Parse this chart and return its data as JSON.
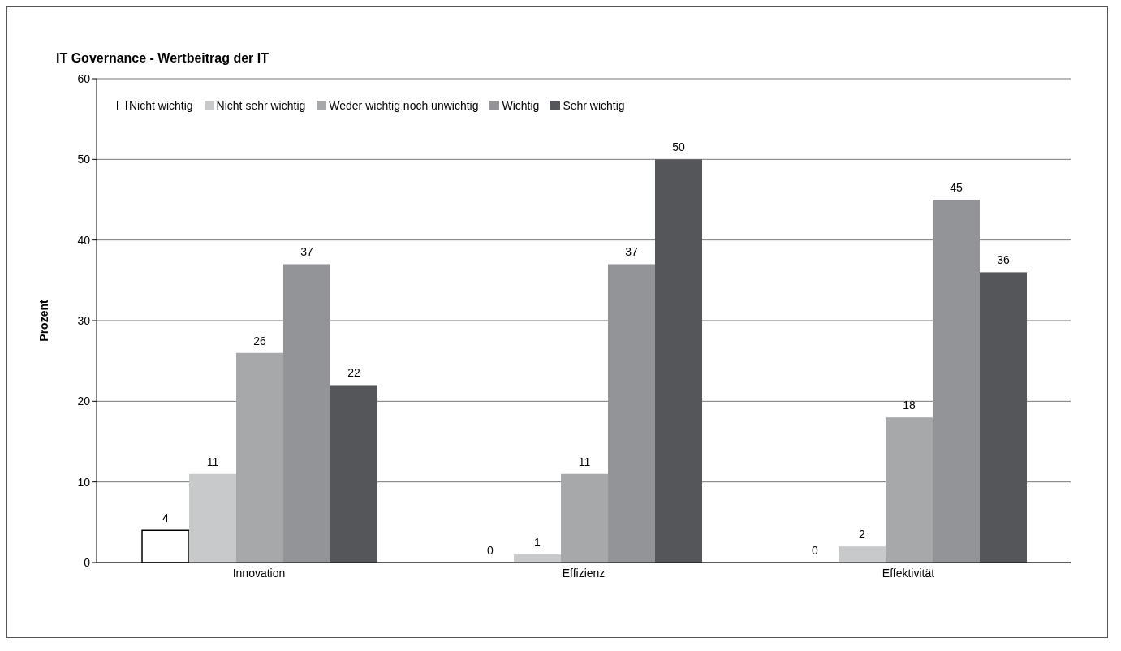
{
  "chart_data": {
    "type": "bar",
    "title": "IT Governance - Wertbeitrag der IT",
    "ylabel": "Prozent",
    "categories": [
      "Innovation",
      "Effizienz",
      "Effektivität"
    ],
    "series": [
      {
        "name": "Nicht wichtig",
        "color": "#ffffff",
        "values": [
          4,
          0,
          0
        ]
      },
      {
        "name": "Nicht sehr wichtig",
        "color": "#c8c9cb",
        "values": [
          11,
          1,
          2
        ]
      },
      {
        "name": "Weder wichtig noch unwichtig",
        "color": "#a7a8aa",
        "values": [
          26,
          11,
          18
        ]
      },
      {
        "name": "Wichtig",
        "color": "#939497",
        "values": [
          37,
          37,
          45
        ]
      },
      {
        "name": "Sehr wichtig",
        "color": "#555659",
        "values": [
          22,
          50,
          36
        ]
      }
    ],
    "ylim": [
      0,
      60
    ],
    "yticks": [
      0,
      10,
      20,
      30,
      40,
      50,
      60
    ],
    "grid": "y",
    "legend": "top left",
    "data_labels": true
  }
}
